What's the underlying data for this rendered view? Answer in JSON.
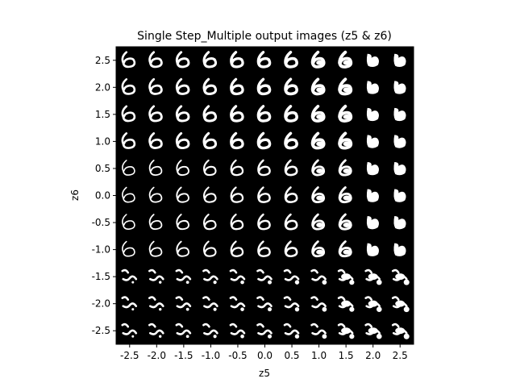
{
  "chart_data": {
    "type": "heatmap",
    "title": "Single Step_Multiple output images (z5 & z6)",
    "xlabel": "z5",
    "ylabel": "z6",
    "x_ticks": [
      "-2.5",
      "-2.0",
      "-1.5",
      "-1.0",
      "-0.5",
      "0.0",
      "0.5",
      "1.0",
      "1.5",
      "2.0",
      "2.5"
    ],
    "y_ticks": [
      "2.5",
      "2.0",
      "1.5",
      "1.0",
      "0.5",
      "0.0",
      "-0.5",
      "-1.0",
      "-1.5",
      "-2.0",
      "-2.5"
    ],
    "x_values": [
      -2.5,
      -2.0,
      -1.5,
      -1.0,
      -0.5,
      0.0,
      0.5,
      1.0,
      1.5,
      2.0,
      2.5
    ],
    "y_values": [
      2.5,
      2.0,
      1.5,
      1.0,
      0.5,
      0.0,
      -0.5,
      -1.0,
      -1.5,
      -2.0,
      -2.5
    ],
    "xlim": [
      -2.75,
      2.75
    ],
    "ylim": [
      -2.75,
      2.75
    ],
    "grid": false,
    "legend": "none",
    "background_color": "#000000",
    "glyph_color": "#ffffff",
    "glyph_description": "decoded digit images (mostly '6') whose shape varies smoothly across the z5/z6 grid"
  }
}
